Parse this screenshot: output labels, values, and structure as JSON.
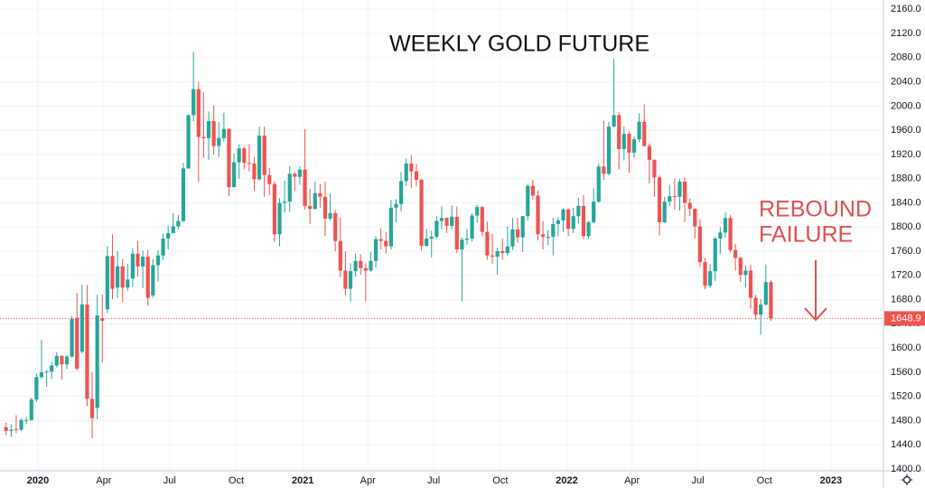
{
  "chart_data": {
    "type": "candlestick",
    "annotations": [
      {
        "text": "WEEKLY GOLD FUTURE"
      },
      {
        "lines": [
          "REBOUND",
          "FAILURE"
        ]
      }
    ],
    "xlim": [
      -7.49,
      166.93
    ],
    "ylim": [
      1400,
      2175.3
    ],
    "grid": true,
    "up_color": "#26a69a",
    "down_color": "#ef5350",
    "xticks": [
      {
        "value": 0,
        "label": "2020"
      },
      {
        "value": 13,
        "label": "Apr"
      },
      {
        "value": 26,
        "label": "Jul"
      },
      {
        "value": 39.14,
        "label": "Oct"
      },
      {
        "value": 52.29,
        "label": "2021"
      },
      {
        "value": 65.14,
        "label": "Apr"
      },
      {
        "value": 78.14,
        "label": "Jul"
      },
      {
        "value": 91.29,
        "label": "Oct"
      },
      {
        "value": 104.43,
        "label": "2022"
      },
      {
        "value": 117.29,
        "label": "Apr"
      },
      {
        "value": 130.29,
        "label": "Jul"
      },
      {
        "value": 143.43,
        "label": "Oct"
      },
      {
        "value": 156.57,
        "label": "2023"
      }
    ],
    "yticks": [
      {
        "value": 1400,
        "label": "1400.0"
      },
      {
        "value": 1440,
        "label": "1440.0"
      },
      {
        "value": 1480,
        "label": "1480.0"
      },
      {
        "value": 1520,
        "label": "1520.0"
      },
      {
        "value": 1560,
        "label": "1560.0"
      },
      {
        "value": 1600,
        "label": "1600.0"
      },
      {
        "value": 1640,
        "label": "1640.0"
      },
      {
        "value": 1680,
        "label": "1680.0"
      },
      {
        "value": 1720,
        "label": "1720.0"
      },
      {
        "value": 1760,
        "label": "1760.0"
      },
      {
        "value": 1800,
        "label": "1800.0"
      },
      {
        "value": 1840,
        "label": "1840.0"
      },
      {
        "value": 1880,
        "label": "1880.0"
      },
      {
        "value": 1920,
        "label": "1920.0"
      },
      {
        "value": 1960,
        "label": "1960.0"
      },
      {
        "value": 2000,
        "label": "2000.0"
      },
      {
        "value": 2040,
        "label": "2040.0"
      },
      {
        "value": 2080,
        "label": "2080.0"
      },
      {
        "value": 2120,
        "label": "2120.0"
      },
      {
        "value": 2160,
        "label": "2160.0"
      }
    ],
    "x": [
      -6.29,
      -5.29,
      -4.29,
      -3.29,
      -2.29,
      -1.29,
      -0.29,
      0.71,
      1.71,
      2.71,
      3.71,
      4.71,
      5.71,
      6.71,
      7.71,
      8.71,
      9.71,
      10.71,
      11.71,
      12.71,
      13.71,
      14.71,
      15.71,
      16.71,
      17.71,
      18.71,
      19.71,
      20.71,
      21.71,
      22.71,
      23.71,
      24.71,
      25.71,
      26.71,
      27.71,
      28.71,
      29.71,
      30.71,
      31.71,
      32.71,
      33.71,
      34.71,
      35.71,
      36.71,
      37.71,
      38.71,
      39.71,
      40.71,
      41.71,
      42.71,
      43.71,
      44.71,
      45.71,
      46.71,
      47.71,
      48.71,
      49.71,
      50.71,
      51.71,
      52.71,
      53.71,
      54.71,
      55.71,
      56.71,
      57.71,
      58.71,
      59.71,
      60.71,
      61.71,
      62.71,
      63.71,
      64.71,
      65.71,
      66.71,
      67.71,
      68.71,
      69.71,
      70.71,
      71.71,
      72.71,
      73.71,
      74.71,
      75.71,
      76.71,
      77.71,
      78.71,
      79.71,
      80.71,
      81.71,
      82.71,
      83.71,
      84.71,
      85.71,
      86.71,
      87.71,
      88.71,
      89.71,
      90.71,
      91.71,
      92.71,
      93.71,
      94.71,
      95.71,
      96.71,
      97.71,
      98.71,
      99.71,
      100.71,
      101.71,
      102.71,
      103.71,
      104.71,
      105.71,
      106.71,
      107.71,
      108.71,
      109.71,
      110.71,
      111.71,
      112.71,
      113.71,
      114.71,
      115.71,
      116.71,
      117.71,
      118.71,
      119.71,
      120.71,
      121.71,
      122.71,
      123.71,
      124.71,
      125.71,
      126.71,
      127.71,
      128.71,
      129.71,
      130.71,
      131.71,
      132.71,
      133.71,
      134.71,
      135.71,
      136.71,
      137.71,
      138.71,
      139.71,
      140.71,
      141.71,
      142.71,
      143.71,
      144.71
    ],
    "open": [
      1469,
      1463,
      1466,
      1465,
      1481,
      1481,
      1515,
      1552,
      1560,
      1561,
      1571,
      1587,
      1573,
      1586,
      1650,
      1594,
      1672,
      1516,
      1501,
      1649,
      1664,
      1752,
      1700,
      1735,
      1700,
      1715,
      1756,
      1735,
      1751,
      1687,
      1737,
      1753,
      1781,
      1790,
      1801,
      1810,
      1897,
      1985,
      2028,
      1949,
      1947,
      1975,
      1934,
      1947,
      1962,
      1866,
      1907,
      1930,
      1906,
      1905,
      1879,
      1951,
      1886,
      1871,
      1788,
      1840,
      1842,
      1888,
      1883,
      1895,
      1835,
      1830,
      1856,
      1850,
      1814,
      1823,
      1777,
      1728,
      1698,
      1727,
      1744,
      1732,
      1728,
      1744,
      1780,
      1777,
      1768,
      1832,
      1838,
      1876,
      1905,
      1892,
      1878,
      1769,
      1781,
      1784,
      1810,
      1815,
      1802,
      1817,
      1763,
      1779,
      1781,
      1819,
      1833,
      1792,
      1753,
      1751,
      1760,
      1757,
      1768,
      1796,
      1783,
      1818,
      1868,
      1852,
      1788,
      1784,
      1784,
      1805,
      1811,
      1829,
      1797,
      1818,
      1835,
      1785,
      1808,
      1842,
      1900,
      1888,
      1966,
      1985,
      1929,
      1954,
      1923,
      1945,
      1974,
      1934,
      1911,
      1882,
      1808,
      1842,
      1851,
      1850,
      1875,
      1840,
      1830,
      1801,
      1742,
      1703,
      1727,
      1781,
      1791,
      1815,
      1762,
      1749,
      1721,
      1728,
      1683,
      1655,
      1672,
      1709
    ],
    "high": [
      1477,
      1474,
      1489,
      1484,
      1486,
      1518,
      1558,
      1613,
      1564,
      1577,
      1593,
      1588,
      1588,
      1653,
      1691,
      1705,
      1704,
      1560,
      1688,
      1688,
      1768,
      1788,
      1760,
      1747,
      1739,
      1765,
      1777,
      1761,
      1762,
      1747,
      1762,
      1789,
      1803,
      1823,
      1820,
      1906,
      1986,
      2089,
      2040,
      2023,
      1991,
      2001,
      1974,
      1989,
      1964,
      1922,
      1937,
      1933,
      1937,
      1916,
      1966,
      1966,
      1898,
      1875,
      1848,
      1877,
      1901,
      1891,
      1900,
      1962,
      1863,
      1875,
      1871,
      1875,
      1855,
      1828,
      1816,
      1760,
      1740,
      1756,
      1755,
      1740,
      1759,
      1785,
      1798,
      1792,
      1845,
      1846,
      1891,
      1913,
      1919,
      1904,
      1880,
      1797,
      1794,
      1818,
      1834,
      1816,
      1836,
      1834,
      1783,
      1797,
      1823,
      1837,
      1835,
      1809,
      1789,
      1766,
      1781,
      1801,
      1815,
      1815,
      1818,
      1871,
      1878,
      1861,
      1810,
      1795,
      1815,
      1816,
      1831,
      1831,
      1832,
      1848,
      1853,
      1810,
      1864,
      1905,
      1976,
      1974,
      2078,
      1990,
      1966,
      1958,
      1950,
      1988,
      2003,
      1938,
      1912,
      1885,
      1850,
      1870,
      1880,
      1879,
      1882,
      1847,
      1831,
      1813,
      1749,
      1739,
      1784,
      1800,
      1824,
      1820,
      1772,
      1751,
      1736,
      1738,
      1688,
      1681,
      1738,
      1712
    ],
    "low": [
      1456,
      1453,
      1459,
      1463,
      1474,
      1480,
      1511,
      1549,
      1536,
      1549,
      1568,
      1548,
      1565,
      1584,
      1563,
      1591,
      1504,
      1451,
      1482,
      1576,
      1658,
      1681,
      1683,
      1676,
      1695,
      1701,
      1718,
      1699,
      1670,
      1683,
      1710,
      1745,
      1763,
      1790,
      1796,
      1808,
      1896,
      1975,
      1874,
      1915,
      1911,
      1920,
      1916,
      1941,
      1851,
      1866,
      1880,
      1896,
      1892,
      1860,
      1877,
      1850,
      1853,
      1775,
      1768,
      1824,
      1825,
      1859,
      1870,
      1829,
      1805,
      1829,
      1832,
      1785,
      1811,
      1760,
      1717,
      1687,
      1677,
      1718,
      1721,
      1677,
      1726,
      1733,
      1763,
      1756,
      1763,
      1808,
      1826,
      1868,
      1864,
      1867,
      1761,
      1768,
      1750,
      1781,
      1796,
      1790,
      1796,
      1757,
      1677,
      1771,
      1776,
      1807,
      1785,
      1746,
      1739,
      1721,
      1746,
      1753,
      1762,
      1774,
      1759,
      1811,
      1845,
      1778,
      1763,
      1770,
      1753,
      1785,
      1792,
      1785,
      1790,
      1806,
      1780,
      1781,
      1806,
      1840,
      1878,
      1885,
      1965,
      1895,
      1910,
      1890,
      1915,
      1940,
      1933,
      1872,
      1850,
      1786,
      1807,
      1835,
      1829,
      1827,
      1808,
      1818,
      1781,
      1734,
      1697,
      1700,
      1711,
      1756,
      1782,
      1758,
      1728,
      1709,
      1700,
      1665,
      1647,
      1622,
      1670,
      1645
    ],
    "close": [
      1463,
      1465,
      1465,
      1481,
      1481,
      1515,
      1552,
      1560,
      1561,
      1571,
      1587,
      1573,
      1586,
      1648,
      1566,
      1672,
      1516,
      1484,
      1654,
      1645,
      1752,
      1698,
      1735,
      1700,
      1713,
      1756,
      1735,
      1751,
      1683,
      1737,
      1753,
      1781,
      1790,
      1801,
      1810,
      1897,
      1985,
      2028,
      1949,
      1947,
      1975,
      1934,
      1947,
      1962,
      1866,
      1907,
      1930,
      1906,
      1905,
      1879,
      1951,
      1886,
      1871,
      1788,
      1840,
      1842,
      1888,
      1883,
      1895,
      1835,
      1830,
      1856,
      1850,
      1814,
      1823,
      1777,
      1728,
      1698,
      1727,
      1744,
      1732,
      1728,
      1744,
      1780,
      1777,
      1768,
      1832,
      1838,
      1876,
      1905,
      1892,
      1878,
      1769,
      1781,
      1784,
      1810,
      1815,
      1802,
      1817,
      1763,
      1779,
      1781,
      1819,
      1833,
      1792,
      1753,
      1751,
      1760,
      1757,
      1768,
      1796,
      1783,
      1818,
      1868,
      1852,
      1788,
      1784,
      1784,
      1805,
      1811,
      1829,
      1797,
      1818,
      1835,
      1785,
      1808,
      1842,
      1900,
      1888,
      1966,
      1985,
      1929,
      1954,
      1923,
      1945,
      1974,
      1934,
      1911,
      1882,
      1808,
      1842,
      1851,
      1850,
      1875,
      1840,
      1830,
      1801,
      1742,
      1703,
      1727,
      1781,
      1791,
      1815,
      1762,
      1749,
      1721,
      1728,
      1683,
      1655,
      1672,
      1709,
      1648.9
    ]
  }
}
